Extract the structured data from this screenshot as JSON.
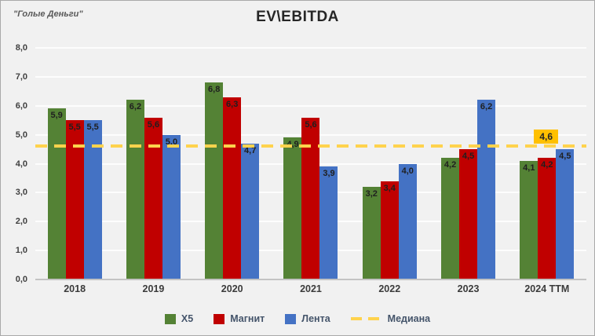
{
  "watermark": "\"Голые Деньги\"",
  "title": "EV\\EBITDA",
  "chart_data": {
    "type": "bar",
    "title": "EV\\EBITDA",
    "categories": [
      "2018",
      "2019",
      "2020",
      "2021",
      "2022",
      "2023",
      "2024 TTM"
    ],
    "series": [
      {
        "name": "X5",
        "color": "#548235",
        "values": [
          5.9,
          6.2,
          6.8,
          4.9,
          3.2,
          4.2,
          4.1
        ]
      },
      {
        "name": "Магнит",
        "color": "#C00000",
        "values": [
          5.5,
          5.6,
          6.3,
          5.6,
          3.4,
          4.5,
          4.2
        ]
      },
      {
        "name": "Лента",
        "color": "#4472C4",
        "values": [
          5.5,
          5.0,
          4.7,
          3.9,
          4.0,
          6.2,
          4.5
        ]
      }
    ],
    "median": {
      "name": "Медиана",
      "value": 4.6,
      "label": "4,6",
      "color": "#FFC000",
      "line_color": "#FFD34D"
    },
    "ylim": [
      0,
      8
    ],
    "ytick_step": 1,
    "ytick_labels": [
      "0,0",
      "1,0",
      "2,0",
      "3,0",
      "4,0",
      "5,0",
      "6,0",
      "7,0",
      "8,0"
    ],
    "grid": true,
    "legend_position": "bottom",
    "decimal_separator": ","
  }
}
